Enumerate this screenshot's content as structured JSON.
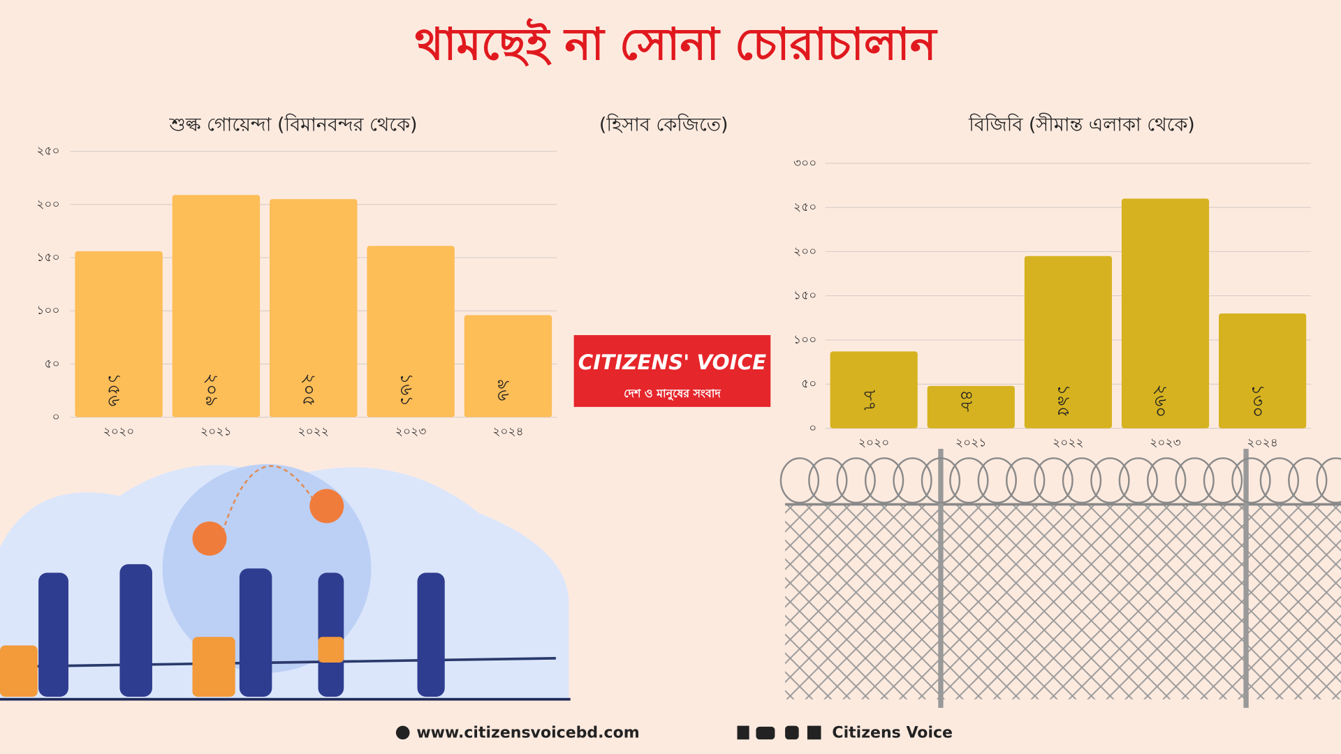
{
  "title": "থামছেই না সোনা চোরাচালান",
  "unit_note": "(হিসাব কেজিতে)",
  "logo": {
    "name": "CITIZENS' VOICE",
    "tagline": "দেশ ও মানুষের সংবাদ"
  },
  "footer": {
    "website": "www.citizensvoicebd.com",
    "social": "Citizens Voice"
  },
  "chart_data": [
    {
      "type": "bar",
      "title": "শুল্ক গোয়েন্দা (বিমানবন্দর থেকে)",
      "categories": [
        "২০২০",
        "২০২১",
        "২০২২",
        "২০২৩",
        "২০২৪"
      ],
      "values": [
        156,
        209,
        205,
        161,
        96
      ],
      "value_labels": [
        "১৫৬",
        "২০৯",
        "২০৫",
        "১৬১",
        "৯৬"
      ],
      "color": "#fdbd57",
      "ylim": [
        0,
        250
      ],
      "yticks": [
        {
          "value": 0,
          "label": "০"
        },
        {
          "value": 50,
          "label": "৫০"
        },
        {
          "value": 100,
          "label": "১০০"
        },
        {
          "value": 150,
          "label": "১৫০"
        },
        {
          "value": 200,
          "label": "২০০"
        },
        {
          "value": 250,
          "label": "২৫০"
        }
      ],
      "grid": true
    },
    {
      "type": "bar",
      "title": "বিজিবি (সীমান্ত এলাকা থেকে)",
      "categories": [
        "২০২০",
        "২০২১",
        "২০২২",
        "২০২৩",
        "২০২৪"
      ],
      "values": [
        87,
        48,
        195,
        260,
        130
      ],
      "value_labels": [
        "৮৭",
        "৪৮",
        "১৯৫",
        "২৬০",
        "১৩০"
      ],
      "color": "#d6b220",
      "ylim": [
        0,
        300
      ],
      "yticks": [
        {
          "value": 0,
          "label": "০"
        },
        {
          "value": 50,
          "label": "৫০"
        },
        {
          "value": 100,
          "label": "১০০"
        },
        {
          "value": 150,
          "label": "১৫০"
        },
        {
          "value": 200,
          "label": "২০০"
        },
        {
          "value": 250,
          "label": "২৫০"
        },
        {
          "value": 300,
          "label": "৩০০"
        }
      ],
      "grid": true
    }
  ]
}
